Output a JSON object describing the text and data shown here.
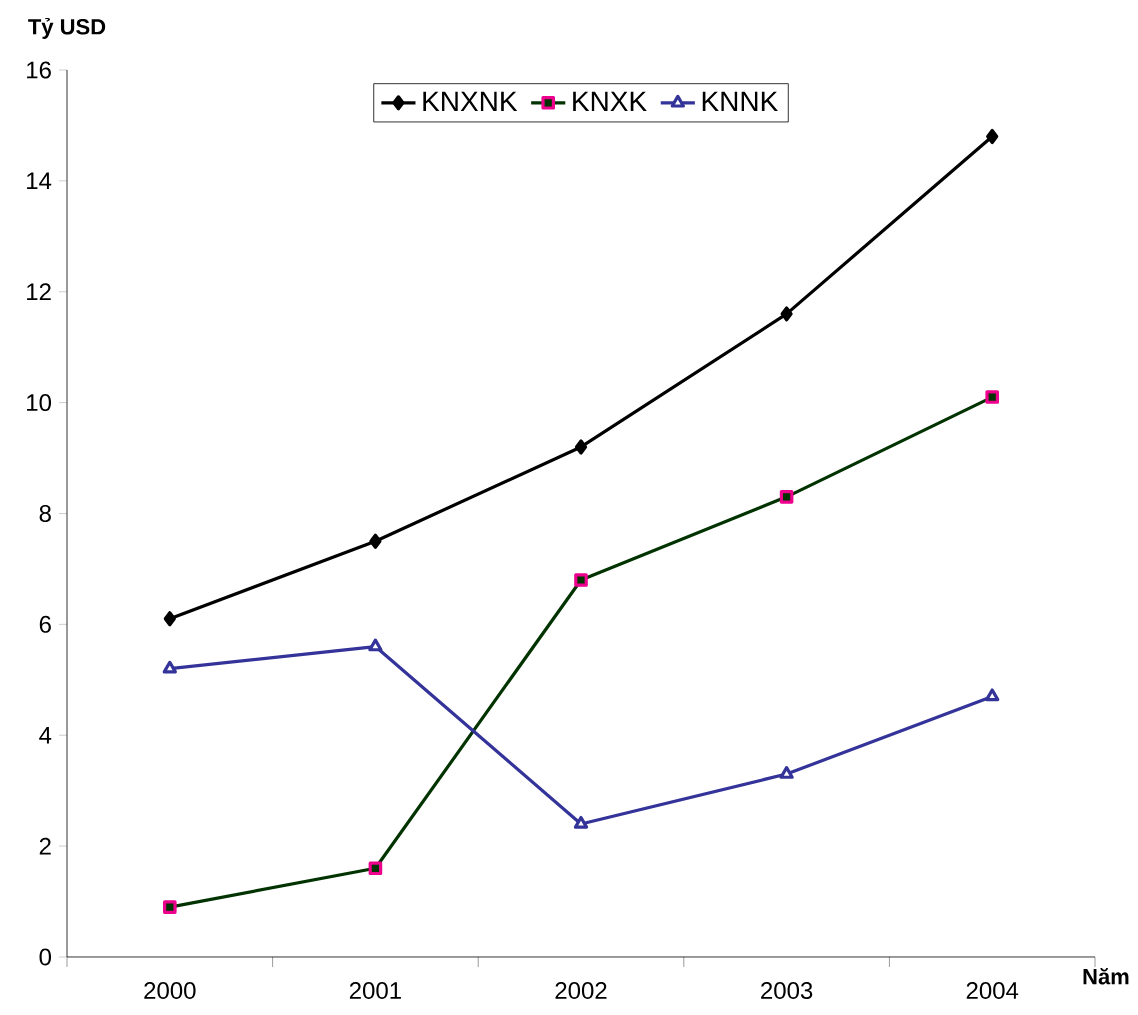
{
  "chart_data": {
    "type": "line",
    "ylabel": "Tỷ USD",
    "xlabel": "Năm",
    "categories": [
      "2000",
      "2001",
      "2002",
      "2003",
      "2004"
    ],
    "series": [
      {
        "name": "KNXNK",
        "color": "#000000",
        "marker": "diamond",
        "values": [
          6.1,
          7.5,
          9.2,
          11.6,
          14.8
        ]
      },
      {
        "name": "KNXK",
        "color": "#003300",
        "marker": "square",
        "values": [
          0.9,
          1.6,
          6.8,
          8.3,
          10.1
        ]
      },
      {
        "name": "KNNK",
        "color": "#333399",
        "marker": "triangle",
        "values": [
          5.2,
          5.6,
          2.4,
          3.3,
          4.7
        ]
      }
    ],
    "ylim": [
      0,
      16
    ],
    "yticks": [
      0,
      2,
      4,
      6,
      8,
      10,
      12,
      14,
      16
    ],
    "grid": false,
    "legend": "top",
    "line_style": "solid"
  }
}
